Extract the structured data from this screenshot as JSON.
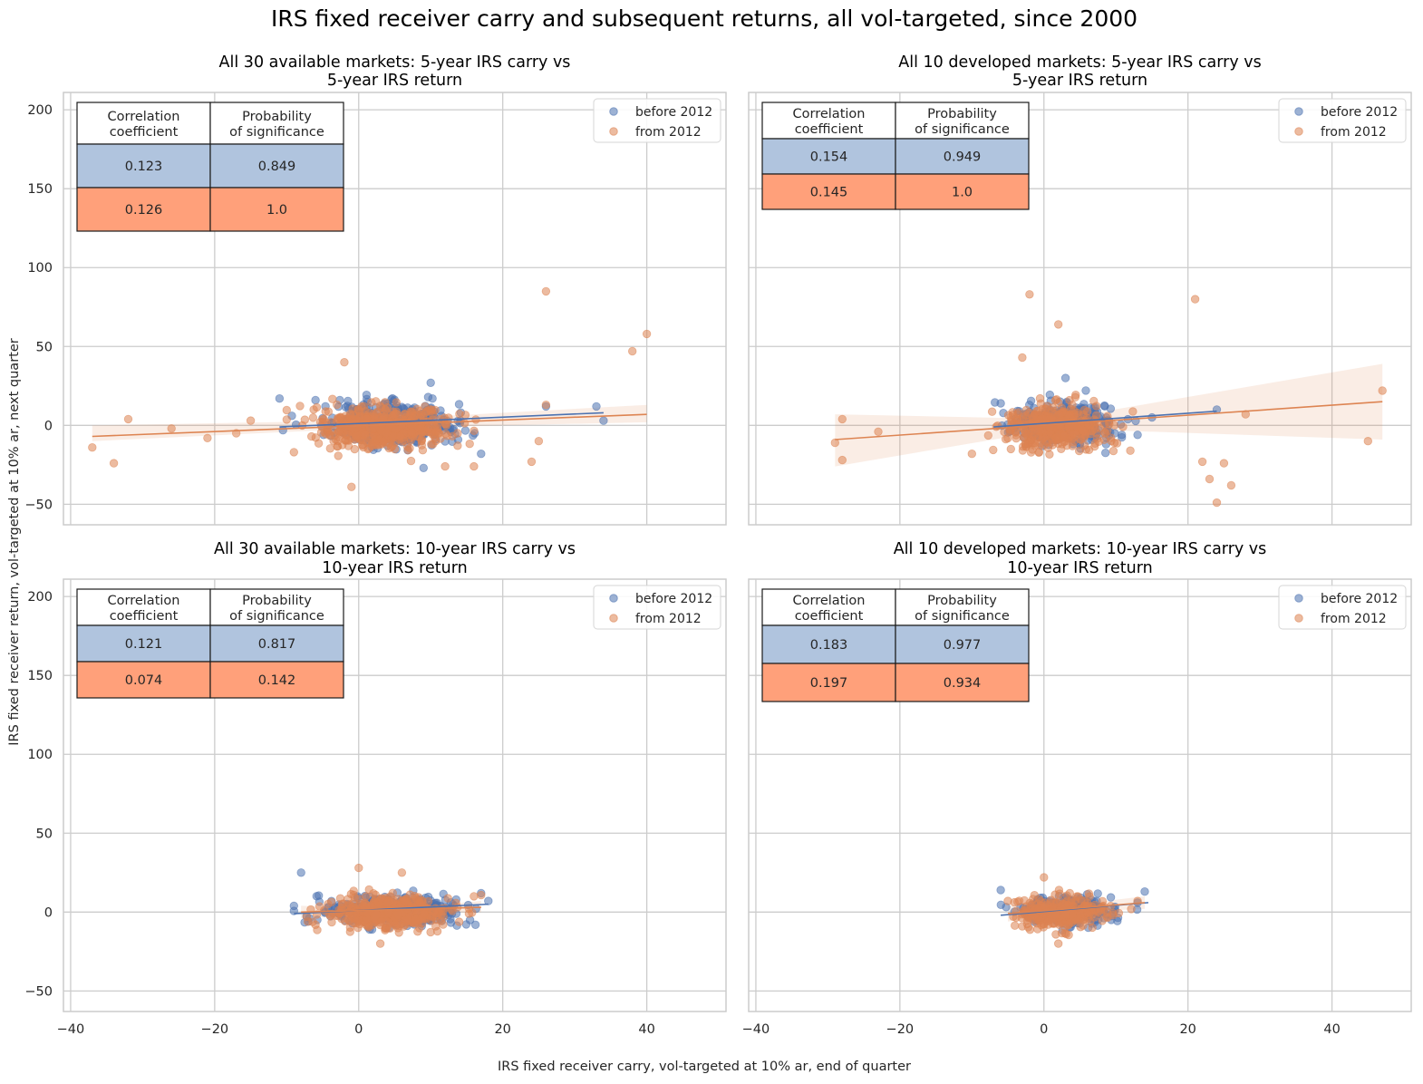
{
  "figure": {
    "title": "IRS fixed receiver carry and subsequent returns, all vol-targeted, since 2000",
    "xlabel": "IRS fixed receiver carry, vol-targeted at 10% ar, end of quarter",
    "ylabel": "IRS fixed receiver return, vol-targeted at 10% ar, next quarter"
  },
  "colors": {
    "before": "#4c72b0",
    "from": "#dd8452",
    "table_before": "#b0c4de",
    "table_from": "#ffa07a",
    "grid": "#cccccc"
  },
  "legend": {
    "labels": [
      "before 2012",
      "from 2012"
    ],
    "position": "top-right"
  },
  "table_headers": {
    "col1": [
      "Correlation",
      "coefficient"
    ],
    "col2": [
      "Probability",
      "of significance"
    ]
  },
  "chart_data": [
    {
      "type": "scatter",
      "title": [
        "All 30 available markets: 5-year IRS carry vs",
        "5-year IRS return"
      ],
      "xlim": [
        -41,
        51
      ],
      "ylim": [
        -63,
        211
      ],
      "xticks": [
        -40,
        -20,
        0,
        20,
        40
      ],
      "yticks": [
        -50,
        0,
        50,
        100,
        150,
        200
      ],
      "stats": [
        {
          "corr": "0.123",
          "prob": "0.849"
        },
        {
          "corr": "0.126",
          "prob": "1.0"
        }
      ],
      "series": [
        {
          "name": "before 2012",
          "cloud": {
            "cx": 4.5,
            "cy": 1,
            "sx": 4.5,
            "sy": 6.5,
            "xmin": -11,
            "xmax": 19,
            "ymin": -27,
            "ymax": 28,
            "n": 420
          },
          "points": [
            [
              -11,
              17
            ],
            [
              34,
              3
            ],
            [
              33,
              12
            ],
            [
              26,
              12
            ],
            [
              17,
              -18
            ],
            [
              9,
              -27
            ],
            [
              10,
              27
            ],
            [
              -6,
              16
            ]
          ],
          "fit": [
            [
              -11,
              -1
            ],
            [
              34,
              8
            ]
          ]
        },
        {
          "name": "from 2012",
          "cloud": {
            "cx": 3.5,
            "cy": -1,
            "sx": 4.5,
            "sy": 6.5,
            "xmin": -10,
            "xmax": 18,
            "ymin": -30,
            "ymax": 30,
            "n": 520
          },
          "points": [
            [
              -37,
              -14
            ],
            [
              -34,
              -24
            ],
            [
              -32,
              4
            ],
            [
              -26,
              -2
            ],
            [
              -21,
              -8
            ],
            [
              -17,
              -5
            ],
            [
              -15,
              3
            ],
            [
              -2,
              40
            ],
            [
              -1,
              -39
            ],
            [
              16,
              -26
            ],
            [
              24,
              -23
            ],
            [
              25,
              -10
            ],
            [
              26,
              85
            ],
            [
              26,
              13
            ],
            [
              38,
              47
            ],
            [
              40,
              58
            ],
            [
              12,
              -26
            ],
            [
              -9,
              -17
            ]
          ],
          "fit": [
            [
              -37,
              -7
            ],
            [
              40,
              7
            ]
          ],
          "band": [
            [
              -37,
              -10,
              0
            ],
            [
              0,
              -2,
              3
            ],
            [
              40,
              2,
              13
            ]
          ]
        }
      ]
    },
    {
      "type": "scatter",
      "title": [
        "All 10 developed markets: 5-year IRS carry vs",
        "5-year IRS return"
      ],
      "xlim": [
        -41,
        51
      ],
      "ylim": [
        -63,
        211
      ],
      "xticks": [
        -40,
        -20,
        0,
        20,
        40
      ],
      "yticks": [
        -50,
        0,
        50,
        100,
        150,
        200
      ],
      "stats": [
        {
          "corr": "0.154",
          "prob": "0.949"
        },
        {
          "corr": "0.145",
          "prob": "1.0"
        }
      ],
      "series": [
        {
          "name": "before 2012",
          "cloud": {
            "cx": 2.5,
            "cy": 1,
            "sx": 3.5,
            "sy": 6,
            "xmin": -7,
            "xmax": 14,
            "ymin": -27,
            "ymax": 30,
            "n": 330
          },
          "points": [
            [
              24,
              10
            ],
            [
              15,
              5
            ],
            [
              -6,
              14
            ],
            [
              13,
              -6
            ],
            [
              3,
              30
            ]
          ],
          "fit": [
            [
              -7,
              -1
            ],
            [
              24,
              9
            ]
          ]
        },
        {
          "name": "from 2012",
          "cloud": {
            "cx": 2,
            "cy": -1,
            "sx": 3.8,
            "sy": 6.5,
            "xmin": -8,
            "xmax": 14,
            "ymin": -30,
            "ymax": 30,
            "n": 400
          },
          "points": [
            [
              -28,
              4
            ],
            [
              -28,
              -22
            ],
            [
              -23,
              -4
            ],
            [
              -2,
              83
            ],
            [
              -3,
              43
            ],
            [
              2,
              64
            ],
            [
              21,
              80
            ],
            [
              45,
              -10
            ],
            [
              47,
              22
            ],
            [
              22,
              -23
            ],
            [
              23,
              -34
            ],
            [
              24,
              -49
            ],
            [
              25,
              -24
            ],
            [
              26,
              -38
            ],
            [
              28,
              7
            ],
            [
              -29,
              -11
            ],
            [
              -10,
              -18
            ],
            [
              12,
              -16
            ]
          ],
          "fit": [
            [
              -29,
              -9
            ],
            [
              47,
              15
            ]
          ],
          "band": [
            [
              -29,
              -26,
              7
            ],
            [
              2,
              -2,
              4
            ],
            [
              47,
              -9,
              39
            ]
          ]
        }
      ]
    },
    {
      "type": "scatter",
      "title": [
        "All 30 available markets: 10-year IRS carry vs",
        "10-year IRS return"
      ],
      "xlim": [
        -41,
        51
      ],
      "ylim": [
        -63,
        211
      ],
      "xticks": [
        -40,
        -20,
        0,
        20,
        40
      ],
      "yticks": [
        -50,
        0,
        50,
        100,
        150,
        200
      ],
      "stats": [
        {
          "corr": "0.121",
          "prob": "0.817"
        },
        {
          "corr": "0.074",
          "prob": "0.142"
        }
      ],
      "series": [
        {
          "name": "before 2012",
          "cloud": {
            "cx": 4.5,
            "cy": 1,
            "sx": 4.5,
            "sy": 4.5,
            "xmin": -9,
            "xmax": 18,
            "ymin": -21,
            "ymax": 22,
            "n": 400
          },
          "points": [
            [
              -9,
              4
            ],
            [
              -8,
              25
            ],
            [
              18,
              7
            ],
            [
              17,
              12
            ],
            [
              -7,
              -6
            ]
          ],
          "fit": [
            [
              -9,
              -1
            ],
            [
              18,
              5
            ]
          ]
        },
        {
          "name": "from 2012",
          "cloud": {
            "cx": 4,
            "cy": 0,
            "sx": 4.2,
            "sy": 4.8,
            "xmin": -8,
            "xmax": 17,
            "ymin": -22,
            "ymax": 26,
            "n": 450
          },
          "points": [
            [
              0,
              28
            ],
            [
              6,
              25
            ],
            [
              3,
              -20
            ],
            [
              -6,
              -8
            ],
            [
              16,
              10
            ]
          ],
          "fit": [
            [
              -8,
              0
            ],
            [
              17,
              3
            ]
          ],
          "band": [
            [
              -8,
              -4,
              4
            ],
            [
              4,
              -1,
              2
            ],
            [
              17,
              0,
              7
            ]
          ]
        }
      ]
    },
    {
      "type": "scatter",
      "title": [
        "All 10 developed markets: 10-year IRS carry vs",
        "10-year IRS return"
      ],
      "xlim": [
        -41,
        51
      ],
      "ylim": [
        -63,
        211
      ],
      "xticks": [
        -40,
        -20,
        0,
        20,
        40
      ],
      "yticks": [
        -50,
        0,
        50,
        100,
        150,
        200
      ],
      "stats": [
        {
          "corr": "0.183",
          "prob": "0.977"
        },
        {
          "corr": "0.197",
          "prob": "0.934"
        }
      ],
      "series": [
        {
          "name": "before 2012",
          "cloud": {
            "cx": 3,
            "cy": 1,
            "sx": 3,
            "sy": 4.5,
            "xmin": -6,
            "xmax": 14.5,
            "ymin": -20,
            "ymax": 20,
            "n": 260
          },
          "points": [
            [
              -6,
              14
            ],
            [
              14,
              13
            ],
            [
              13,
              6
            ]
          ],
          "fit": [
            [
              -6,
              -2
            ],
            [
              14.5,
              6
            ]
          ]
        },
        {
          "name": "from 2012",
          "cloud": {
            "cx": 2.5,
            "cy": 0,
            "sx": 3,
            "sy": 4.8,
            "xmin": -5,
            "xmax": 14,
            "ymin": -21,
            "ymax": 22,
            "n": 300
          },
          "points": [
            [
              -3,
              -9
            ],
            [
              13,
              7
            ],
            [
              0,
              22
            ],
            [
              2,
              -20
            ]
          ],
          "fit": [
            [
              -5,
              -1
            ],
            [
              14,
              6
            ]
          ],
          "band": [
            [
              -5,
              -6,
              4
            ],
            [
              3,
              0,
              4
            ],
            [
              14,
              2,
              10
            ]
          ]
        }
      ]
    }
  ]
}
